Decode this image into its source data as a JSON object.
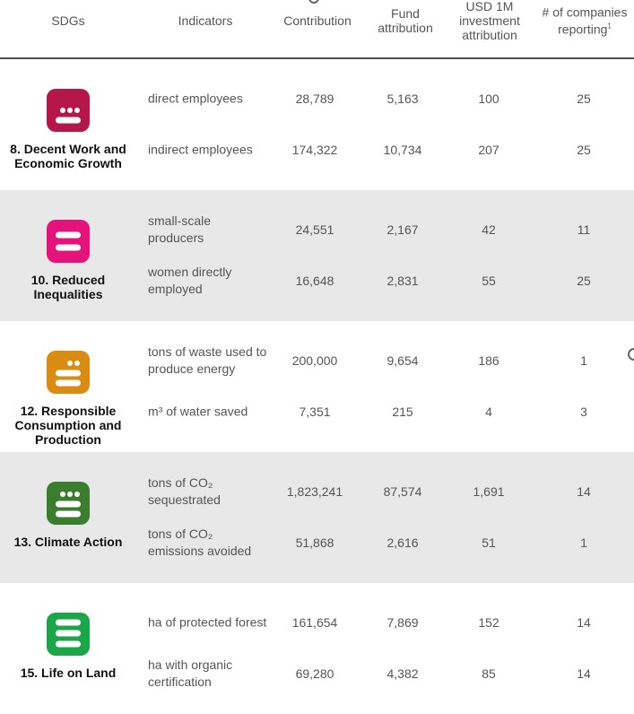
{
  "header": {
    "sdgs": "SDGs",
    "indicators": "Indicators",
    "contribution": "Contribution",
    "fund_attribution": "Fund attribution",
    "usd_attribution": "USD 1M investment attribution",
    "companies_reporting": "# of companies reporting",
    "companies_footnote": "1"
  },
  "sections": [
    {
      "label": "8. Decent Work and Economic Growth",
      "color": "#b5174b",
      "icon": "sdg8-icon",
      "dots": 3,
      "bars": 1,
      "shaded": false,
      "rows": [
        {
          "indicator": "direct employees",
          "contribution": "28,789",
          "fund": "5,163",
          "usd": "100",
          "companies": "25"
        },
        {
          "indicator": "indirect employees",
          "contribution": "174,322",
          "fund": "10,734",
          "usd": "207",
          "companies": "25"
        }
      ]
    },
    {
      "label": "10. Reduced Inequalities",
      "color": "#e4137b",
      "icon": "sdg10-icon",
      "dots": 0,
      "bars": 2,
      "shaded": true,
      "rows": [
        {
          "indicator": "small-scale producers",
          "contribution": "24,551",
          "fund": "2,167",
          "usd": "42",
          "companies": "11"
        },
        {
          "indicator": "women directly employed",
          "contribution": "16,648",
          "fund": "2,831",
          "usd": "55",
          "companies": "25"
        }
      ]
    },
    {
      "label": "12. Responsible Consumption and Production",
      "color": "#d98b12",
      "icon": "sdg12-icon",
      "dots": 2,
      "bars": 2,
      "shaded": false,
      "rows": [
        {
          "indicator": "tons of waste used to produce energy",
          "contribution": "200,000",
          "fund": "9,654",
          "usd": "186",
          "companies": "1"
        },
        {
          "indicator": "m³ of water saved",
          "contribution": "7,351",
          "fund": "215",
          "usd": "4",
          "companies": "3"
        }
      ]
    },
    {
      "label": "13. Climate Action",
      "color": "#3b7d2f",
      "icon": "sdg13-icon",
      "dots": 3,
      "bars": 2,
      "shaded": true,
      "rows": [
        {
          "indicator": "tons of CO₂ sequestrated",
          "contribution": "1,823,241",
          "fund": "87,574",
          "usd": "1,691",
          "companies": "14"
        },
        {
          "indicator": "tons of CO₂ emissions avoided",
          "contribution": "51,868",
          "fund": "2,616",
          "usd": "51",
          "companies": "1"
        }
      ]
    },
    {
      "label": "15. Life on Land",
      "color": "#1ca64a",
      "icon": "sdg15-icon",
      "dots": 0,
      "bars": 3,
      "shaded": false,
      "rows": [
        {
          "indicator": "ha of protected forest",
          "contribution": "161,654",
          "fund": "7,869",
          "usd": "152",
          "companies": "14"
        },
        {
          "indicator": "ha with organic certification",
          "contribution": "69,280",
          "fund": "4,382",
          "usd": "85",
          "companies": "14"
        }
      ]
    }
  ]
}
